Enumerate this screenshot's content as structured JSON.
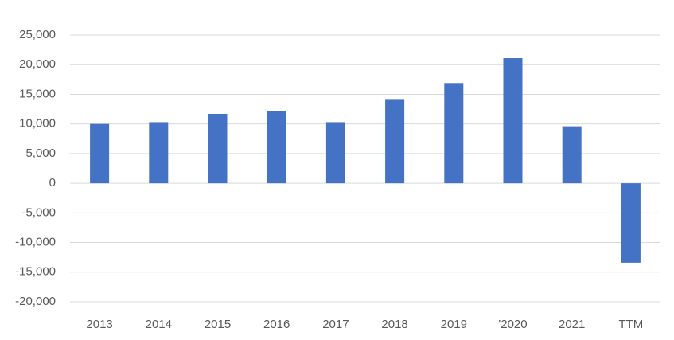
{
  "chart_data": {
    "type": "bar",
    "categories": [
      "2013",
      "2014",
      "2015",
      "2016",
      "2017",
      "2018",
      "2019",
      "'2020",
      "2021",
      "TTM"
    ],
    "values": [
      10000,
      10300,
      11700,
      12200,
      10300,
      14200,
      16900,
      21100,
      9600,
      -13400
    ],
    "color": "#4472c4",
    "ylim": [
      -20000,
      25000
    ],
    "yticks": [
      {
        "value": -20000,
        "label": "-20,000"
      },
      {
        "value": -15000,
        "label": "-15,000"
      },
      {
        "value": -10000,
        "label": "-10,000"
      },
      {
        "value": -5000,
        "label": "-5,000"
      },
      0,
      {
        "value": 5000,
        "label": "5,000"
      },
      {
        "value": 10000,
        "label": "10,000"
      },
      {
        "value": 15000,
        "label": "15,000"
      },
      {
        "value": 20000,
        "label": "20,000"
      },
      {
        "value": 25000,
        "label": "25,000"
      }
    ],
    "grid": true
  }
}
